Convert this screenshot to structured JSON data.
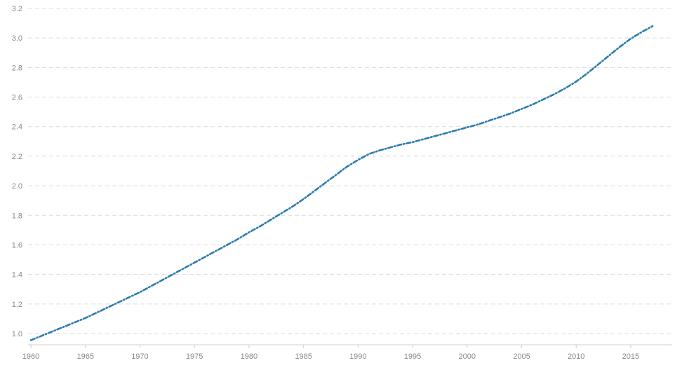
{
  "chart_data": {
    "type": "line",
    "title": "",
    "xlabel": "",
    "ylabel": "",
    "xlim": [
      1960,
      2017
    ],
    "ylim": [
      0.95,
      3.2
    ],
    "grid": true,
    "legend": "none",
    "x_ticks": [
      "1960",
      "1965",
      "1970",
      "1975",
      "1980",
      "1985",
      "1990",
      "1995",
      "2000",
      "2005",
      "2010",
      "2015"
    ],
    "y_ticks": [
      "1.0",
      "1.2",
      "1.4",
      "1.6",
      "1.8",
      "2.0",
      "2.2",
      "2.4",
      "2.6",
      "2.8",
      "3.0",
      "3.2"
    ],
    "series": [
      {
        "color": "#2b7bb0",
        "x": [
          1960,
          1961,
          1962,
          1963,
          1964,
          1965,
          1966,
          1967,
          1968,
          1969,
          1970,
          1971,
          1972,
          1973,
          1974,
          1975,
          1976,
          1977,
          1978,
          1979,
          1980,
          1981,
          1982,
          1983,
          1984,
          1985,
          1986,
          1987,
          1988,
          1989,
          1990,
          1991,
          1992,
          1993,
          1994,
          1995,
          1996,
          1997,
          1998,
          1999,
          2000,
          2001,
          2002,
          2003,
          2004,
          2005,
          2006,
          2007,
          2008,
          2009,
          2010,
          2011,
          2012,
          2013,
          2014,
          2015,
          2016,
          2017
        ],
        "values": [
          0.955,
          0.985,
          1.015,
          1.045,
          1.075,
          1.105,
          1.14,
          1.175,
          1.21,
          1.245,
          1.28,
          1.32,
          1.36,
          1.4,
          1.44,
          1.48,
          1.52,
          1.56,
          1.6,
          1.64,
          1.685,
          1.725,
          1.77,
          1.815,
          1.86,
          1.91,
          1.965,
          2.02,
          2.075,
          2.13,
          2.175,
          2.215,
          2.24,
          2.26,
          2.28,
          2.295,
          2.315,
          2.335,
          2.355,
          2.375,
          2.395,
          2.415,
          2.44,
          2.465,
          2.49,
          2.52,
          2.55,
          2.585,
          2.62,
          2.66,
          2.705,
          2.76,
          2.82,
          2.88,
          2.94,
          2.995,
          3.04,
          3.08
        ]
      }
    ]
  }
}
